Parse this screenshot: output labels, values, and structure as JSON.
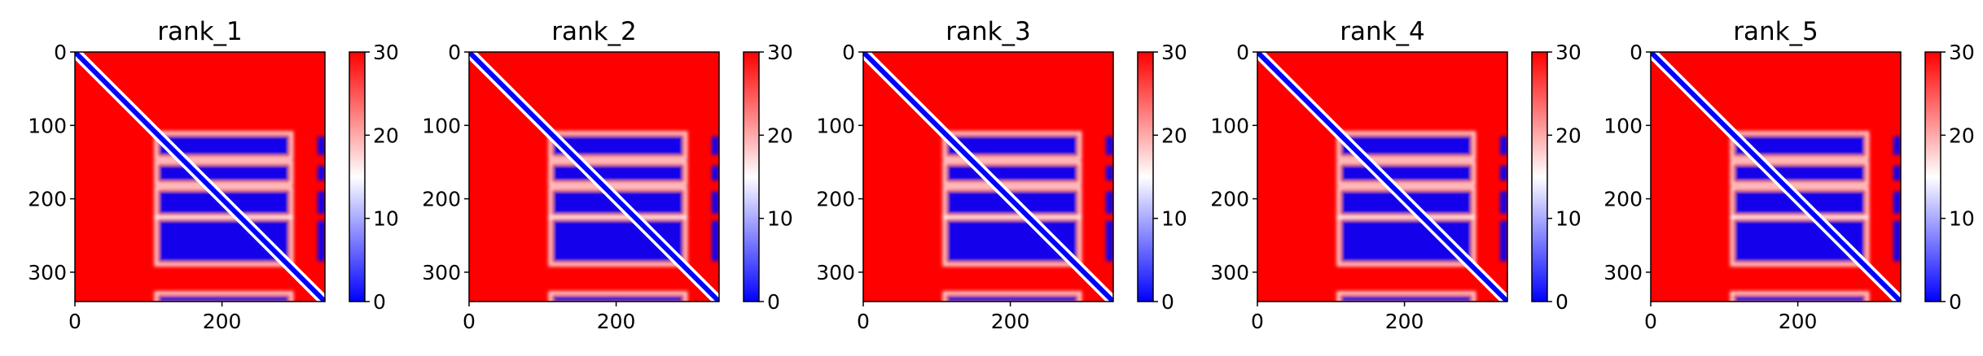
{
  "chart_data": [
    {
      "type": "heatmap",
      "title": "rank_1",
      "x_ticks": [
        0,
        200
      ],
      "y_ticks": [
        0,
        100,
        200,
        300
      ],
      "xlim": [
        0,
        340
      ],
      "ylim": [
        340,
        0
      ],
      "colorbar": {
        "min": 0,
        "max": 30,
        "ticks": [
          0,
          10,
          20,
          30
        ],
        "colormap": "bwr"
      },
      "low_value_blocks": {
        "rows": [
          [
            115,
            140
          ],
          [
            155,
            175
          ],
          [
            190,
            220
          ],
          [
            230,
            285
          ],
          [
            333,
            340
          ]
        ],
        "cols": [
          [
            115,
            290
          ],
          [
            330,
            340
          ]
        ]
      },
      "diagonal_band_width": 6
    },
    {
      "type": "heatmap",
      "title": "rank_2",
      "x_ticks": [
        0,
        200
      ],
      "y_ticks": [
        0,
        100,
        200,
        300
      ],
      "xlim": [
        0,
        340
      ],
      "ylim": [
        340,
        0
      ],
      "colorbar": {
        "min": 0,
        "max": 30,
        "ticks": [
          0,
          10,
          20,
          30
        ],
        "colormap": "bwr"
      },
      "low_value_blocks": {
        "rows": [
          [
            115,
            140
          ],
          [
            155,
            175
          ],
          [
            190,
            220
          ],
          [
            230,
            285
          ],
          [
            333,
            340
          ]
        ],
        "cols": [
          [
            115,
            290
          ],
          [
            330,
            340
          ]
        ]
      },
      "diagonal_band_width": 6
    },
    {
      "type": "heatmap",
      "title": "rank_3",
      "x_ticks": [
        0,
        200
      ],
      "y_ticks": [
        0,
        100,
        200,
        300
      ],
      "xlim": [
        0,
        340
      ],
      "ylim": [
        340,
        0
      ],
      "colorbar": {
        "min": 0,
        "max": 30,
        "ticks": [
          0,
          10,
          20,
          30
        ],
        "colormap": "bwr"
      },
      "low_value_blocks": {
        "rows": [
          [
            115,
            140
          ],
          [
            155,
            175
          ],
          [
            190,
            220
          ],
          [
            230,
            285
          ],
          [
            333,
            340
          ]
        ],
        "cols": [
          [
            115,
            290
          ],
          [
            330,
            340
          ]
        ]
      },
      "diagonal_band_width": 6
    },
    {
      "type": "heatmap",
      "title": "rank_4",
      "x_ticks": [
        0,
        200
      ],
      "y_ticks": [
        0,
        100,
        200,
        300
      ],
      "xlim": [
        0,
        340
      ],
      "ylim": [
        340,
        0
      ],
      "colorbar": {
        "min": 0,
        "max": 30,
        "ticks": [
          0,
          10,
          20,
          30
        ],
        "colormap": "bwr"
      },
      "low_value_blocks": {
        "rows": [
          [
            115,
            140
          ],
          [
            155,
            175
          ],
          [
            190,
            220
          ],
          [
            230,
            285
          ],
          [
            333,
            340
          ]
        ],
        "cols": [
          [
            115,
            290
          ],
          [
            330,
            340
          ]
        ]
      },
      "diagonal_band_width": 6
    },
    {
      "type": "heatmap",
      "title": "rank_5",
      "x_ticks": [
        0,
        200
      ],
      "y_ticks": [
        0,
        100,
        200,
        300
      ],
      "xlim": [
        0,
        340
      ],
      "ylim": [
        340,
        0
      ],
      "colorbar": {
        "min": 0,
        "max": 30,
        "ticks": [
          0,
          10,
          20,
          30
        ],
        "colormap": "bwr"
      },
      "low_value_blocks": {
        "rows": [
          [
            115,
            140
          ],
          [
            155,
            175
          ],
          [
            190,
            220
          ],
          [
            230,
            285
          ],
          [
            333,
            340
          ]
        ],
        "cols": [
          [
            115,
            290
          ],
          [
            330,
            340
          ]
        ]
      },
      "diagonal_band_width": 6
    }
  ],
  "colors": {
    "high": "#ff0000",
    "mid": "#ffffff",
    "low": "#0000ff"
  }
}
